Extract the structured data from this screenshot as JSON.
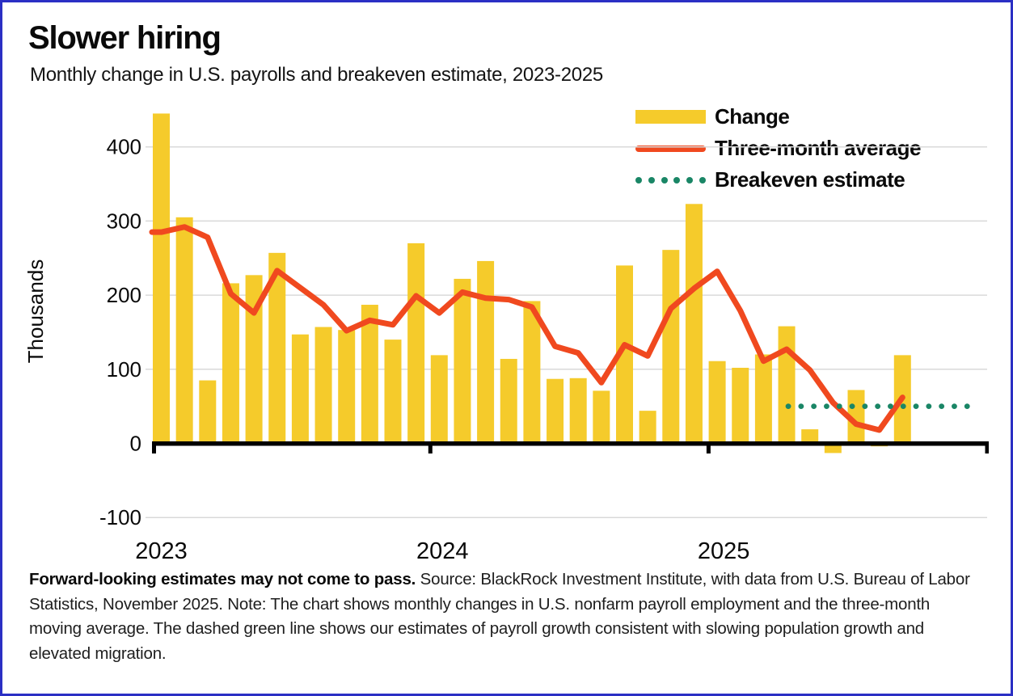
{
  "title": "Slower hiring",
  "subtitle": "Monthly change in U.S. payrolls and breakeven estimate, 2023-2025",
  "legend": [
    {
      "label": "Change",
      "type": "bar",
      "color": "#F5CB2B"
    },
    {
      "label": "Three-month average",
      "type": "line",
      "color": "#F0491F"
    },
    {
      "label": "Breakeven estimate",
      "type": "dots",
      "color": "#1A8666"
    }
  ],
  "footer": {
    "lines": [
      {
        "bold": "Forward-looking estimates may not come to pass.",
        "text": " Source: BlackRock Investment Institute, with data from U.S. Bureau of Labor"
      },
      {
        "bold": "",
        "text": "Statistics, November 2025. Note: The chart shows monthly changes in U.S. nonfarm payroll employment and the three-month"
      },
      {
        "bold": "",
        "text": "moving average. The dashed green line shows our estimates of payroll growth consistent with slowing population growth and"
      },
      {
        "bold": "",
        "text": "elevated migration."
      }
    ]
  },
  "chart_data": {
    "type": "bar",
    "title": "Slower hiring",
    "subtitle": "Monthly change in U.S. payrolls and breakeven estimate, 2023-2025",
    "ylabel": "Thousands",
    "xlabel": "",
    "ylim": [
      -130,
      460
    ],
    "y_ticks": [
      400,
      300,
      200,
      100,
      0,
      -100
    ],
    "x_year_labels": [
      "2023",
      "2024",
      "2025"
    ],
    "grid": "horizontal",
    "legend_position": "top-right",
    "months": [
      "Jan 2023",
      "Feb 2023",
      "Mar 2023",
      "Apr 2023",
      "May 2023",
      "Jun 2023",
      "Jul 2023",
      "Aug 2023",
      "Sep 2023",
      "Oct 2023",
      "Nov 2023",
      "Dec 2023",
      "Jan 2024",
      "Feb 2024",
      "Mar 2024",
      "Apr 2024",
      "May 2024",
      "Jun 2024",
      "Jul 2024",
      "Aug 2024",
      "Sep 2024",
      "Oct 2024",
      "Nov 2024",
      "Dec 2024",
      "Jan 2025",
      "Feb 2025",
      "Mar 2025",
      "Apr 2025",
      "May 2025",
      "Jun 2025",
      "Jul 2025",
      "Aug 2025",
      "Sep 2025"
    ],
    "series": [
      {
        "name": "Change",
        "type": "bar",
        "color": "#F5CB2B",
        "values": [
          445,
          305,
          85,
          216,
          227,
          257,
          147,
          157,
          153,
          187,
          140,
          270,
          119,
          222,
          246,
          114,
          192,
          87,
          88,
          71,
          240,
          44,
          261,
          323,
          111,
          102,
          120,
          158,
          19,
          -13,
          72,
          -4,
          119
        ]
      },
      {
        "name": "Three-month average",
        "type": "line",
        "color": "#F0491F",
        "values": [
          285,
          292,
          278,
          202,
          176,
          233,
          210,
          187,
          152,
          166,
          160,
          199,
          176,
          204,
          196,
          194,
          184,
          131,
          122,
          82,
          133,
          118,
          182,
          209,
          232,
          179,
          111,
          127,
          99,
          55,
          26,
          18,
          62
        ]
      },
      {
        "name": "Breakeven estimate",
        "type": "dotted-line",
        "color": "#1A8666",
        "value": 50,
        "start_month": "Apr 2025",
        "extends_to": "right edge of plot"
      }
    ]
  }
}
